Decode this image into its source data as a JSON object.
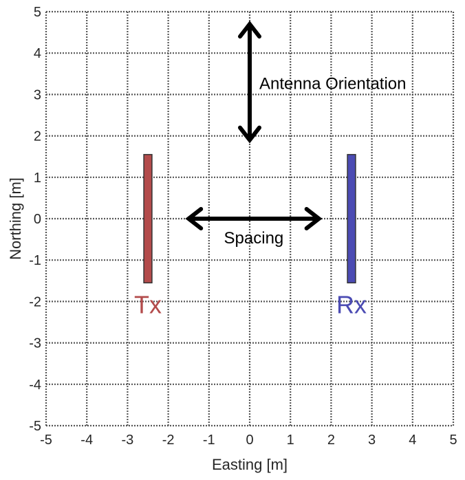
{
  "chart_data": {
    "type": "diagram",
    "xlabel": "Easting [m]",
    "ylabel": "Northing [m]",
    "xlim": [
      -5,
      5
    ],
    "ylim": [
      -5,
      5
    ],
    "xticks": [
      -5,
      -4,
      -3,
      -2,
      -1,
      0,
      1,
      2,
      3,
      4,
      5
    ],
    "yticks": [
      -5,
      -4,
      -3,
      -2,
      -1,
      0,
      1,
      2,
      3,
      4,
      5
    ],
    "grid": true,
    "antennas": [
      {
        "label": "Tx",
        "x": [
          -2.6,
          -2.4
        ],
        "y": [
          -1.55,
          1.55
        ],
        "color": "#b34b4b"
      },
      {
        "label": "Rx",
        "x": [
          2.4,
          2.6
        ],
        "y": [
          -1.55,
          1.55
        ],
        "color": "#4b4bb3"
      }
    ],
    "arrows": [
      {
        "label": "Antenna Orientation",
        "from": [
          0,
          1.9
        ],
        "to": [
          0,
          4.7
        ],
        "double_headed": true,
        "color": "#000000"
      },
      {
        "label": "Spacing",
        "from": [
          -1.5,
          0
        ],
        "to": [
          1.7,
          0
        ],
        "double_headed": true,
        "color": "#000000"
      }
    ]
  }
}
